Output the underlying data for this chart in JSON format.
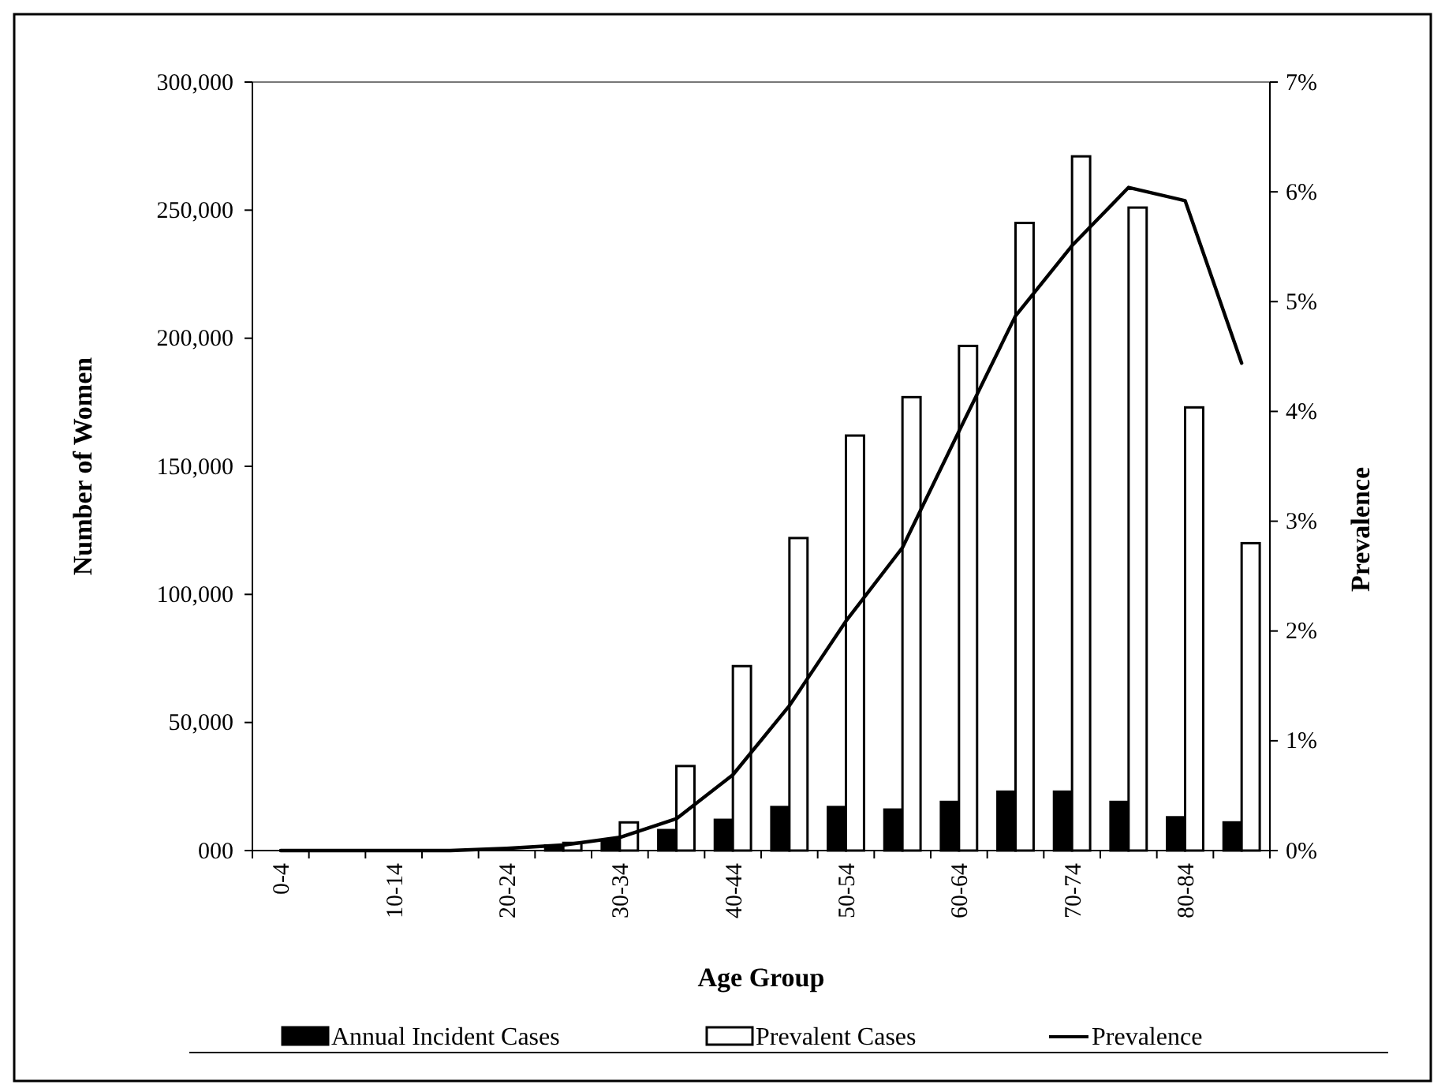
{
  "chart_data": {
    "type": "bar",
    "xlabel": "Age Group",
    "ylabel": "Number of Women",
    "y2label": "Prevalence",
    "categories": [
      "0-4",
      null,
      "10-14",
      null,
      "20-24",
      null,
      "30-34",
      null,
      "40-44",
      null,
      "50-54",
      null,
      "60-64",
      null,
      "70-74",
      null,
      "80-84",
      null
    ],
    "series": [
      {
        "name": "Annual Incident Cases",
        "type": "bar",
        "color": "#000000",
        "values": [
          0,
          0,
          0,
          0,
          null,
          2000,
          4000,
          8000,
          12000,
          17000,
          17000,
          16000,
          19000,
          23000,
          23000,
          19000,
          13000,
          11000
        ]
      },
      {
        "name": "Prevalent Cases",
        "type": "bar",
        "color": "#ffffff",
        "values": [
          0,
          0,
          0,
          0,
          null,
          3000,
          11000,
          33000,
          72000,
          122000,
          162000,
          177000,
          197000,
          245000,
          271000,
          251000,
          173000,
          120000
        ]
      },
      {
        "name": "Prevalence",
        "type": "line",
        "axis": "y2",
        "color": "#000000",
        "values": [
          0,
          0,
          0,
          0,
          0.02,
          0.05,
          0.12,
          0.29,
          0.69,
          1.32,
          2.09,
          2.76,
          3.82,
          4.87,
          5.51,
          6.04,
          5.92,
          4.44
        ]
      }
    ],
    "ylim": [
      0,
      300000
    ],
    "yticks": [
      {
        "value": 0,
        "label": "000"
      },
      {
        "value": 50000,
        "label": "50,000"
      },
      {
        "value": 100000,
        "label": "100,000"
      },
      {
        "value": 150000,
        "label": "150,000"
      },
      {
        "value": 200000,
        "label": "200,000"
      },
      {
        "value": 250000,
        "label": "250,000"
      },
      {
        "value": 300000,
        "label": "300,000"
      }
    ],
    "y2lim": [
      0,
      7
    ],
    "y2ticks": [
      {
        "value": 0,
        "label": "0%"
      },
      {
        "value": 1,
        "label": "1%"
      },
      {
        "value": 2,
        "label": "2%"
      },
      {
        "value": 3,
        "label": "3%"
      },
      {
        "value": 4,
        "label": "4%"
      },
      {
        "value": 5,
        "label": "5%"
      },
      {
        "value": 6,
        "label": "6%"
      },
      {
        "value": 7,
        "label": "7%"
      }
    ],
    "grid": false,
    "legend": "bottom",
    "line_style": "solid",
    "marker": "none"
  }
}
